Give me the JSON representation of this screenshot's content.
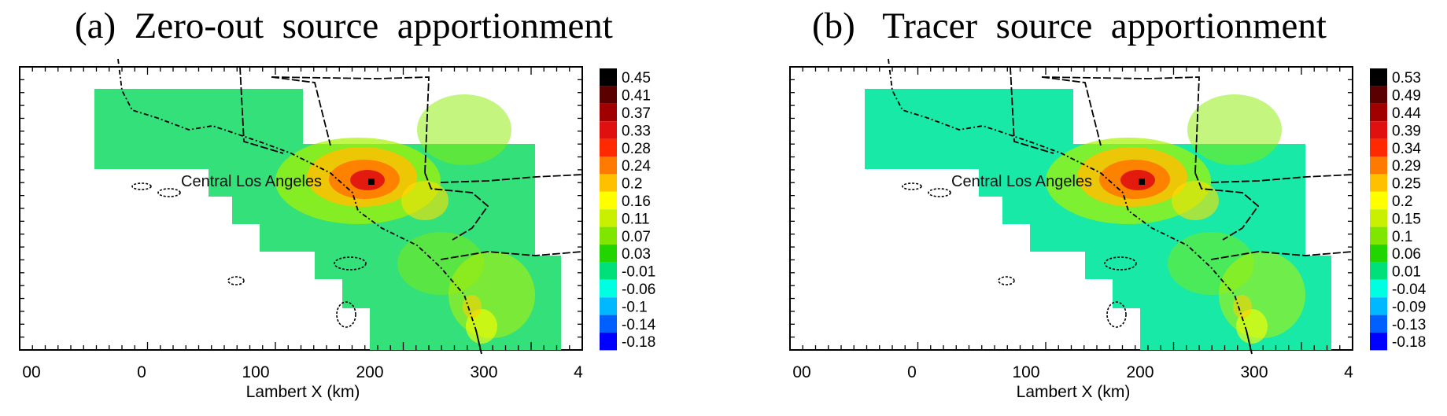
{
  "panels": [
    {
      "title": "(a)  Zero-out  source  apportionment",
      "city_label": "Central Los Angeles",
      "xlabel": "Lambert X (km)",
      "xticks": [
        "00",
        "0",
        "100",
        "200",
        "300",
        "4"
      ],
      "colorbar": [
        "0.45",
        "0.41",
        "0.37",
        "0.33",
        "0.28",
        "0.24",
        "0.2",
        "0.16",
        "0.11",
        "0.07",
        "0.03",
        "-0.01",
        "-0.06",
        "-0.1",
        "-0.14",
        "-0.18"
      ]
    },
    {
      "title": "(b)   Tracer  source  apportionment",
      "city_label": "Central Los Angeles",
      "xlabel": "Lambert X (km)",
      "xticks": [
        "00",
        "0",
        "100",
        "200",
        "300",
        "4"
      ],
      "colorbar": [
        "0.53",
        "0.49",
        "0.44",
        "0.39",
        "0.34",
        "0.29",
        "0.25",
        "0.2",
        "0.15",
        "0.1",
        "0.06",
        "0.01",
        "-0.04",
        "-0.09",
        "-0.13",
        "-0.18"
      ]
    }
  ],
  "colors": {
    "scale": [
      "#000000",
      "#5a0000",
      "#a00000",
      "#e01010",
      "#ff2a00",
      "#ff7a00",
      "#ffc000",
      "#ffff00",
      "#c8f000",
      "#7ee600",
      "#22d400",
      "#00e07a",
      "#00ffe0",
      "#00b8ff",
      "#0060ff",
      "#0000ff"
    ],
    "background_a": "#33e07a",
    "background_b": "#19e9a6"
  }
}
